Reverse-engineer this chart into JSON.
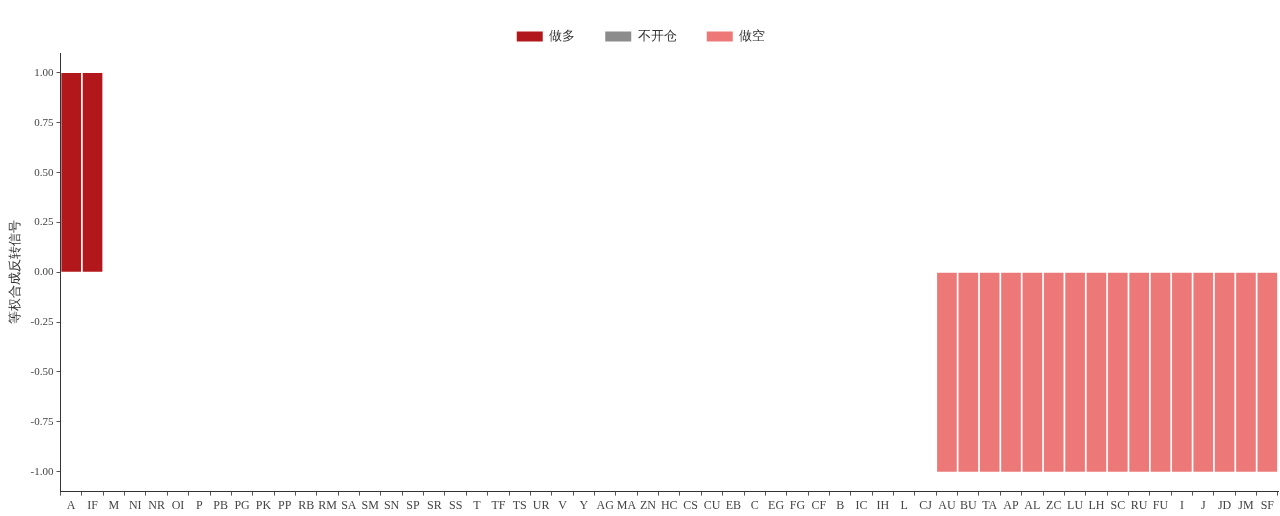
{
  "chart_data": {
    "type": "bar",
    "ylabel": "等权合成反转信号",
    "legend": "top",
    "grid": false,
    "categories": [
      "A",
      "IF",
      "M",
      "NI",
      "NR",
      "OI",
      "P",
      "PB",
      "PG",
      "PK",
      "PP",
      "RB",
      "RM",
      "SA",
      "SM",
      "SN",
      "SP",
      "SR",
      "SS",
      "T",
      "TF",
      "TS",
      "UR",
      "V",
      "Y",
      "AG",
      "MA",
      "ZN",
      "HC",
      "CS",
      "CU",
      "EB",
      "C",
      "EG",
      "FG",
      "CF",
      "B",
      "IC",
      "IH",
      "L",
      "CJ",
      "AU",
      "BU",
      "TA",
      "AP",
      "AL",
      "ZC",
      "LU",
      "LH",
      "SC",
      "RU",
      "FU",
      "I",
      "J",
      "JD",
      "JM",
      "SF"
    ],
    "ylim": [
      -1.1,
      1.1
    ],
    "yticks": [
      {
        "value": -1,
        "label": "-1.00"
      },
      {
        "value": -0.75,
        "label": "-0.75"
      },
      {
        "value": -0.5,
        "label": "-0.50"
      },
      {
        "value": -0.25,
        "label": "-0.25"
      },
      {
        "value": 0,
        "label": "0.00"
      },
      {
        "value": 0.25,
        "label": "0.25"
      },
      {
        "value": 0.5,
        "label": "0.50"
      },
      {
        "value": 0.75,
        "label": "0.75"
      },
      {
        "value": 1,
        "label": "1.00"
      }
    ],
    "series": [
      {
        "name": "做多",
        "color": "#b2181b",
        "values": [
          1,
          1,
          null,
          null,
          null,
          null,
          null,
          null,
          null,
          null,
          null,
          null,
          null,
          null,
          null,
          null,
          null,
          null,
          null,
          null,
          null,
          null,
          null,
          null,
          null,
          null,
          null,
          null,
          null,
          null,
          null,
          null,
          null,
          null,
          null,
          null,
          null,
          null,
          null,
          null,
          null,
          null,
          null,
          null,
          null,
          null,
          null,
          null,
          null,
          null,
          null,
          null,
          null,
          null,
          null,
          null,
          null
        ]
      },
      {
        "name": "不开仓",
        "color": "#8c8c8c",
        "values": [
          null,
          null,
          0,
          0,
          0,
          0,
          0,
          0,
          0,
          0,
          0,
          0,
          0,
          0,
          0,
          0,
          0,
          0,
          0,
          0,
          0,
          0,
          0,
          0,
          0,
          0,
          0,
          0,
          0,
          0,
          0,
          0,
          0,
          0,
          0,
          0,
          0,
          0,
          0,
          0,
          0,
          null,
          null,
          null,
          null,
          null,
          null,
          null,
          null,
          null,
          null,
          null,
          null,
          null,
          null,
          null,
          null
        ]
      },
      {
        "name": "做空",
        "color": "#ec7878",
        "values": [
          null,
          null,
          null,
          null,
          null,
          null,
          null,
          null,
          null,
          null,
          null,
          null,
          null,
          null,
          null,
          null,
          null,
          null,
          null,
          null,
          null,
          null,
          null,
          null,
          null,
          null,
          null,
          null,
          null,
          null,
          null,
          null,
          null,
          null,
          null,
          null,
          null,
          null,
          null,
          null,
          null,
          -1,
          -1,
          -1,
          -1,
          -1,
          -1,
          -1,
          -1,
          -1,
          -1,
          -1,
          -1,
          -1,
          -1,
          -1,
          -1
        ]
      }
    ]
  }
}
